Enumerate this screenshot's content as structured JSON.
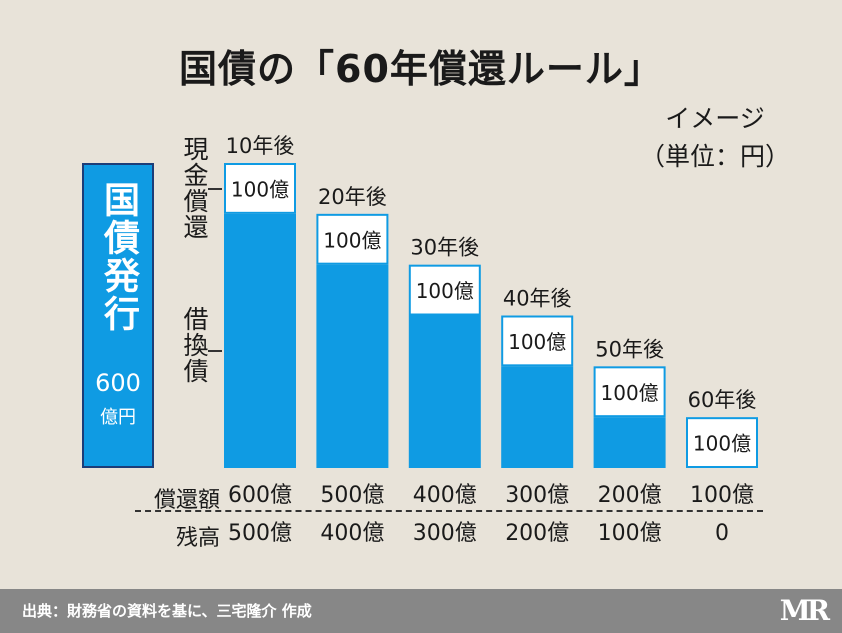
{
  "title": "国債の「60年償還ルール」",
  "subtitle_line1": "イメージ",
  "subtitle_line2": "（単位：円）",
  "issue": {
    "label": "国債発行",
    "amount": "600",
    "unit": "億円"
  },
  "side_labels": {
    "redemption": "現金償還",
    "refinancing": "借換債"
  },
  "row_labels": {
    "redemption": "償還額",
    "remaining": "残高"
  },
  "colors": {
    "bar": "#0f9be3",
    "cap_border": "#0f9be3",
    "background": "#e8e3d9",
    "footer": "#878787"
  },
  "chart_data": {
    "type": "bar",
    "categories": [
      "10年後",
      "20年後",
      "30年後",
      "40年後",
      "50年後",
      "60年後"
    ],
    "series": [
      {
        "values": [
          500,
          400,
          300,
          200,
          100,
          0
        ]
      },
      {
        "values": [
          100,
          100,
          100,
          100,
          100,
          100
        ]
      }
    ],
    "data_labels": [
      "100億",
      "100億",
      "100億",
      "100億",
      "100億",
      "100億"
    ],
    "redemption_amounts": [
      "600億",
      "500億",
      "400億",
      "300億",
      "200億",
      "100億"
    ],
    "remaining_balances": [
      "500億",
      "400億",
      "300億",
      "200億",
      "100億",
      "0"
    ],
    "ylim": [
      0,
      600
    ],
    "grid": false
  },
  "footer": {
    "source": "出典：財務省の資料を基に、三宅隆介 作成",
    "logo": "MR"
  }
}
